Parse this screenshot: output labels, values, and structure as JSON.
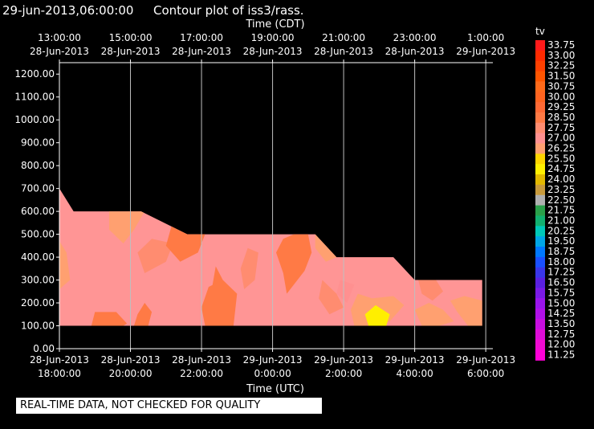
{
  "header": {
    "timestamp": "29-jun-2013,06:00:00",
    "title": "Contour plot of iss3/rass.",
    "timestamp_color": "#ffff00"
  },
  "footnote": "REAL-TIME DATA, NOT CHECKED FOR QUALITY",
  "chart_data": {
    "type": "heatmap",
    "title": "Contour plot of iss3/rass.",
    "top_axis_label": "Time (CDT)",
    "bottom_axis_label": "Time (UTC)",
    "ylim": [
      0,
      1250
    ],
    "xlim_utc_hours": [
      18,
      30.2
    ],
    "y_ticks": [
      "0.00",
      "100.00",
      "200.00",
      "300.00",
      "400.00",
      "500.00",
      "600.00",
      "700.00",
      "800.00",
      "900.00",
      "1000.00",
      "1100.00",
      "1200.00"
    ],
    "y_tick_values": [
      0,
      100,
      200,
      300,
      400,
      500,
      600,
      700,
      800,
      900,
      1000,
      1100,
      1200
    ],
    "x_ticks_top": [
      {
        "time": "13:00:00",
        "date": "28-Jun-2013"
      },
      {
        "time": "15:00:00",
        "date": "28-Jun-2013"
      },
      {
        "time": "17:00:00",
        "date": "28-Jun-2013"
      },
      {
        "time": "19:00:00",
        "date": "28-Jun-2013"
      },
      {
        "time": "21:00:00",
        "date": "28-Jun-2013"
      },
      {
        "time": "23:00:00",
        "date": "28-Jun-2013"
      },
      {
        "time": "1:00:00",
        "date": "29-Jun-2013"
      }
    ],
    "x_ticks_bottom": [
      {
        "date": "28-Jun-2013",
        "time": "18:00:00"
      },
      {
        "date": "28-Jun-2013",
        "time": "20:00:00"
      },
      {
        "date": "28-Jun-2013",
        "time": "22:00:00"
      },
      {
        "date": "29-Jun-2013",
        "time": "0:00:00"
      },
      {
        "date": "29-Jun-2013",
        "time": "2:00:00"
      },
      {
        "date": "29-Jun-2013",
        "time": "4:00:00"
      },
      {
        "date": "29-Jun-2013",
        "time": "6:00:00"
      }
    ],
    "x_tick_hours": [
      18,
      20,
      22,
      24,
      26,
      28,
      30
    ],
    "colorbar": {
      "label": "tv",
      "levels": [
        "33.75",
        "33.00",
        "32.25",
        "31.50",
        "30.75",
        "30.00",
        "29.25",
        "28.50",
        "27.75",
        "27.00",
        "26.25",
        "25.50",
        "24.75",
        "24.00",
        "23.25",
        "22.50",
        "21.75",
        "21.00",
        "20.25",
        "19.50",
        "18.75",
        "18.00",
        "17.25",
        "16.50",
        "15.75",
        "15.00",
        "14.25",
        "13.50",
        "12.75",
        "12.00",
        "11.25"
      ],
      "colors": [
        "#ff1a1a",
        "#ff2a00",
        "#ff4000",
        "#ff5500",
        "#ff6a1a",
        "#ff6420",
        "#ff6a35",
        "#ff7a45",
        "#ff8c70",
        "#ff9090",
        "#ffa070",
        "#ffd400",
        "#ffef00",
        "#e2b800",
        "#c89a3c",
        "#b0b0b0",
        "#2aa04a",
        "#12b070",
        "#00c8b8",
        "#00a6e6",
        "#0078ff",
        "#1a50ff",
        "#3a36e8",
        "#5a20e0",
        "#7a1ae6",
        "#9a14ec",
        "#b010e8",
        "#c80ee0",
        "#de0cd8",
        "#f00ad2",
        "#ff00d8"
      ]
    },
    "grid": true,
    "data_region": [
      {
        "hour": 18.0,
        "top": 700
      },
      {
        "hour": 18.4,
        "top": 600
      },
      {
        "hour": 20.3,
        "top": 600
      },
      {
        "hour": 21.6,
        "top": 500
      },
      {
        "hour": 25.2,
        "top": 500
      },
      {
        "hour": 25.8,
        "top": 400
      },
      {
        "hour": 27.4,
        "top": 400
      },
      {
        "hour": 28.0,
        "top": 300
      },
      {
        "hour": 29.9,
        "top": 300
      }
    ],
    "data_bottom": 100,
    "base_color": "#ff9595",
    "patches": [
      {
        "tv": 26.25,
        "points": [
          [
            19.4,
            600
          ],
          [
            20.4,
            600
          ],
          [
            20.1,
            520
          ],
          [
            19.8,
            460
          ],
          [
            19.4,
            520
          ]
        ]
      },
      {
        "tv": 26.25,
        "points": [
          [
            18.0,
            470
          ],
          [
            18.2,
            420
          ],
          [
            18.3,
            300
          ],
          [
            18.0,
            260
          ]
        ]
      },
      {
        "tv": 27.75,
        "points": [
          [
            20.6,
            480
          ],
          [
            21.2,
            460
          ],
          [
            21.0,
            380
          ],
          [
            20.4,
            330
          ],
          [
            20.2,
            420
          ]
        ]
      },
      {
        "tv": 28.5,
        "points": [
          [
            21.2,
            560
          ],
          [
            22.1,
            500
          ],
          [
            21.9,
            420
          ],
          [
            21.4,
            380
          ],
          [
            21.0,
            450
          ]
        ]
      },
      {
        "tv": 28.5,
        "points": [
          [
            22.4,
            360
          ],
          [
            22.6,
            300
          ],
          [
            22.8,
            200
          ],
          [
            22.5,
            180
          ],
          [
            22.3,
            270
          ]
        ]
      },
      {
        "tv": 28.5,
        "points": [
          [
            22.2,
            270
          ],
          [
            22.6,
            300
          ],
          [
            23.0,
            240
          ],
          [
            22.9,
            100
          ],
          [
            22.1,
            100
          ],
          [
            22.0,
            180
          ]
        ]
      },
      {
        "tv": 28.5,
        "points": [
          [
            24.6,
            500
          ],
          [
            25.0,
            500
          ],
          [
            25.1,
            420
          ],
          [
            24.9,
            340
          ],
          [
            24.4,
            240
          ],
          [
            24.3,
            330
          ],
          [
            24.1,
            420
          ],
          [
            24.3,
            480
          ]
        ]
      },
      {
        "tv": 28.5,
        "points": [
          [
            19.0,
            160
          ],
          [
            19.6,
            160
          ],
          [
            19.9,
            110
          ],
          [
            19.8,
            100
          ],
          [
            18.9,
            100
          ]
        ]
      },
      {
        "tv": 28.5,
        "points": [
          [
            20.4,
            200
          ],
          [
            20.6,
            160
          ],
          [
            20.5,
            100
          ],
          [
            20.1,
            100
          ],
          [
            20.2,
            150
          ]
        ]
      },
      {
        "tv": 27.75,
        "points": [
          [
            23.3,
            440
          ],
          [
            23.6,
            420
          ],
          [
            23.5,
            300
          ],
          [
            23.2,
            260
          ],
          [
            23.1,
            350
          ]
        ]
      },
      {
        "tv": 26.25,
        "points": [
          [
            25.2,
            500
          ],
          [
            25.5,
            460
          ],
          [
            25.8,
            400
          ],
          [
            25.5,
            380
          ],
          [
            25.2,
            440
          ]
        ]
      },
      {
        "tv": 27.75,
        "points": [
          [
            25.4,
            300
          ],
          [
            25.8,
            240
          ],
          [
            26.0,
            180
          ],
          [
            25.6,
            150
          ],
          [
            25.3,
            220
          ]
        ]
      },
      {
        "tv": 26.25,
        "points": [
          [
            26.4,
            240
          ],
          [
            26.8,
            220
          ],
          [
            27.4,
            230
          ],
          [
            27.7,
            190
          ],
          [
            27.3,
            120
          ],
          [
            26.7,
            100
          ],
          [
            26.3,
            100
          ],
          [
            26.2,
            170
          ]
        ]
      },
      {
        "tv": 24.75,
        "points": [
          [
            26.6,
            150
          ],
          [
            26.9,
            190
          ],
          [
            27.3,
            150
          ],
          [
            27.2,
            100
          ],
          [
            26.7,
            100
          ]
        ]
      },
      {
        "tv": 26.25,
        "points": [
          [
            28.0,
            170
          ],
          [
            28.4,
            200
          ],
          [
            28.8,
            170
          ],
          [
            29.1,
            120
          ],
          [
            28.7,
            100
          ],
          [
            28.2,
            100
          ]
        ]
      },
      {
        "tv": 26.25,
        "points": [
          [
            29.0,
            210
          ],
          [
            29.4,
            230
          ],
          [
            29.9,
            210
          ],
          [
            29.9,
            100
          ],
          [
            29.5,
            100
          ],
          [
            29.2,
            160
          ]
        ]
      },
      {
        "tv": 27.75,
        "points": [
          [
            28.1,
            300
          ],
          [
            28.6,
            300
          ],
          [
            28.8,
            250
          ],
          [
            28.5,
            210
          ],
          [
            28.2,
            240
          ]
        ]
      },
      {
        "tv": 27.0,
        "points": [
          [
            25.9,
            300
          ],
          [
            26.3,
            280
          ],
          [
            26.1,
            200
          ],
          [
            25.8,
            240
          ]
        ]
      }
    ]
  }
}
